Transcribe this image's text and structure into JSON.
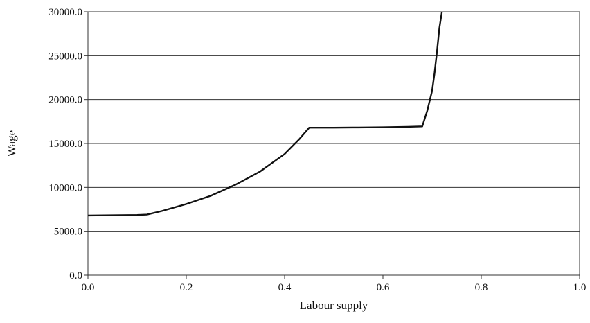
{
  "chart_data": {
    "type": "line",
    "title": "",
    "xlabel": "Labour supply",
    "ylabel": "Wage",
    "xlim": [
      0.0,
      1.0
    ],
    "ylim": [
      0.0,
      30000.0
    ],
    "x_ticks": [
      "0.0",
      "0.2",
      "0.4",
      "0.6",
      "0.8",
      "1.0"
    ],
    "y_ticks": [
      "0.0",
      "5000.0",
      "10000.0",
      "15000.0",
      "20000.0",
      "25000.0",
      "30000.0"
    ],
    "grid": {
      "horizontal": true,
      "vertical": false
    },
    "legend": "none",
    "series": [
      {
        "color": "#111111",
        "points": [
          [
            0.0,
            6800
          ],
          [
            0.05,
            6820
          ],
          [
            0.1,
            6850
          ],
          [
            0.12,
            6900
          ],
          [
            0.15,
            7300
          ],
          [
            0.2,
            8100
          ],
          [
            0.25,
            9050
          ],
          [
            0.3,
            10300
          ],
          [
            0.35,
            11800
          ],
          [
            0.4,
            13800
          ],
          [
            0.43,
            15500
          ],
          [
            0.45,
            16800
          ],
          [
            0.5,
            16800
          ],
          [
            0.55,
            16820
          ],
          [
            0.6,
            16850
          ],
          [
            0.65,
            16900
          ],
          [
            0.68,
            16950
          ],
          [
            0.69,
            18700
          ],
          [
            0.7,
            21000
          ],
          [
            0.705,
            23000
          ],
          [
            0.71,
            25500
          ],
          [
            0.715,
            28200
          ],
          [
            0.72,
            30000
          ]
        ]
      }
    ]
  }
}
